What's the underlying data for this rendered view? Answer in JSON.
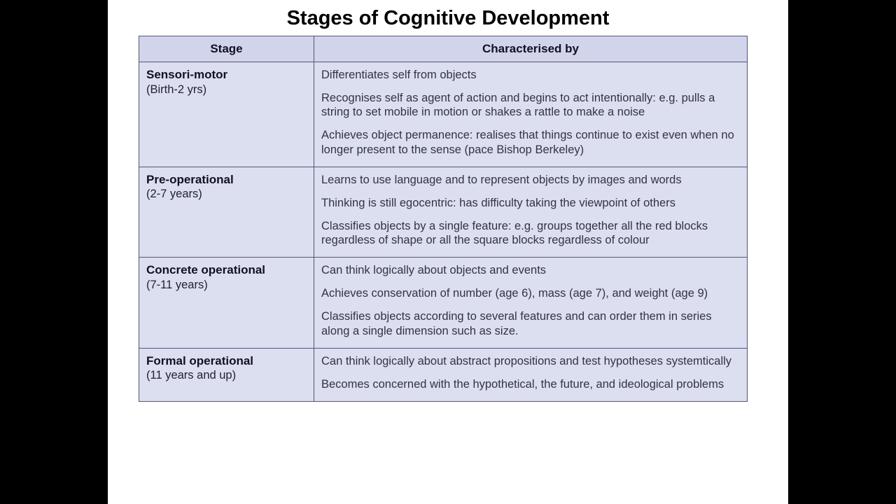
{
  "title": "Stages of Cognitive Development",
  "columns": {
    "stage": "Stage",
    "characterised": "Characterised by"
  },
  "rows": [
    {
      "stage_name": "Sensori-motor",
      "stage_age": "(Birth-2 yrs)",
      "chars": [
        "Differentiates self from objects",
        "Recognises self as agent of action and begins to act intentionally: e.g. pulls a string to set mobile in motion or shakes a rattle to make a noise",
        "Achieves object permanence: realises that things continue to exist even when no longer present to the sense (pace Bishop Berkeley)"
      ]
    },
    {
      "stage_name": "Pre-operational",
      "stage_age": "(2-7 years)",
      "chars": [
        "Learns to use language and to represent objects by images and words",
        "Thinking is still egocentric: has difficulty taking the viewpoint of others",
        "Classifies objects by a single feature: e.g. groups together all the red blocks regardless of shape or all the square blocks regardless of colour"
      ]
    },
    {
      "stage_name": "Concrete operational",
      "stage_age": "(7-11 years)",
      "chars": [
        "Can think logically about objects and events",
        "Achieves conservation of number (age 6), mass (age 7), and weight (age 9)",
        "Classifies objects according to several features and can order them in series along a single dimension such as size."
      ]
    },
    {
      "stage_name": "Formal operational",
      "stage_age": "(11 years and up)",
      "chars": [
        "Can think logically about abstract propositions and test hypotheses systemtically",
        "Becomes concerned with the hypothetical, the future, and ideological problems"
      ]
    }
  ],
  "colors": {
    "page_bg": "#000000",
    "slide_bg": "#ffffff",
    "header_bg": "#d2d4ec",
    "cell_bg": "#dcdff0",
    "border": "#555577",
    "text": "#222233"
  }
}
